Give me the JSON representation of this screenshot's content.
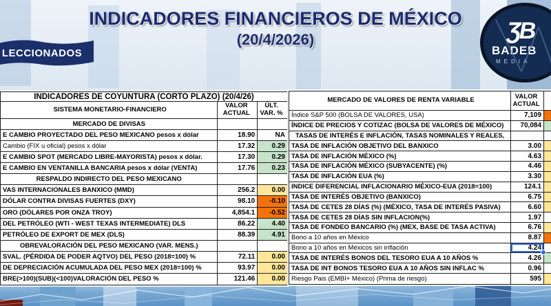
{
  "header": {
    "title": "INDICADORES FINANCIEROS DE MÉXICO",
    "subtitle": "(20/4/2026)",
    "badge": "LECCIONADOS",
    "logo": {
      "monogram": "ƷB",
      "name": "BADEB",
      "sub": "MEDIA"
    }
  },
  "colors": {
    "positive_green": "#c7e3c9",
    "neutral_yellow": "#ffe699",
    "negative_orange": "#f4720b",
    "title_navy": "#1c2b6e"
  },
  "left_table": {
    "title": "INDICADORES DE COYUNTURA (CORTO PLAZO) (20/4/26)",
    "headers": {
      "label": "SISTEMA MONETARIO-FINANCIERO",
      "value": "VALOR\nACTUAL",
      "var": "ÚLT.\nVAR. %"
    },
    "rows": [
      {
        "type": "section",
        "label": "MERCADO DE DIVISAS"
      },
      {
        "type": "data",
        "label": "E CAMBIO PROYECTADO DEL PESO MEXICANO pesos x dólar",
        "value": "18.90",
        "var": "NA",
        "varColor": "none"
      },
      {
        "type": "data",
        "label": "Cambio (FIX u oficial) pesos x dólar",
        "value": "17.32",
        "var": "0.29",
        "varColor": "green",
        "bold": false
      },
      {
        "type": "data",
        "label": "E CAMBIO SPOT (MERCADO LIBRE-MAYORISTA) pesos x dólar.",
        "value": "17.30",
        "var": "0.29",
        "varColor": "green"
      },
      {
        "type": "data",
        "label": "E CAMBIO EN VENTANILLA BANCARIA pesos x dólar (VENTA)",
        "value": "17.76",
        "var": "0.23",
        "varColor": "green"
      },
      {
        "type": "section",
        "label": "RESPALDO INDIRECTO DEL PESO MEXICANO"
      },
      {
        "type": "data",
        "label": "VAS INTERNACIONALES BANXICO (MMD)",
        "value": "256.2",
        "var": "0.00",
        "varColor": "yellow"
      },
      {
        "type": "data",
        "label": "DÓLAR CONTRA DIVISAS FUERTES (DXY)",
        "value": "98.10",
        "var": "-0.10",
        "varColor": "orange"
      },
      {
        "type": "data",
        "label": "ORO (DÓLARES POR ONZA TROY)",
        "value": "4,854.1",
        "var": "-0.52",
        "varColor": "orange"
      },
      {
        "type": "data",
        "label": "DEL PETRÓLEO (WTI - WEST TEXAS INTERMEDIATE) DLS",
        "value": "86.22",
        "var": "4.40",
        "varColor": "green"
      },
      {
        "type": "data",
        "label": "PETRÓLEO DE EXPORT DE MEX (DLS)",
        "value": "88.39",
        "var": "4.91",
        "varColor": "green"
      },
      {
        "type": "section",
        "label": "OBREVALORACIÓN DEL PESO MEXICANO (VAR. MENS.)"
      },
      {
        "type": "data",
        "label": "SVAL. (PÉRDIDA DE PODER AQTVO) DEL PESO (2018=100) %",
        "value": "72.11",
        "var": "0.00",
        "varColor": "yellow"
      },
      {
        "type": "data",
        "label": "DE DEPRECIACIÓN ACUMULADA DEL PESO MEX (2018=100) %",
        "value": "93.97",
        "var": "0.00",
        "varColor": "yellow"
      },
      {
        "type": "data",
        "label": "BRE(>100)(SUB)(<100)VALORACIÓN DEL PESO  %",
        "value": "121.46",
        "var": "0.00",
        "varColor": "yellow"
      }
    ]
  },
  "right_table": {
    "headers": {
      "label": "MERCADO DE VALORES DE RENTA VARIABLE",
      "value": "VALOR\nACTUAL"
    },
    "rows": [
      {
        "type": "data",
        "label": "Índice S&P 500 (BOLSA DE VALORES, USA)",
        "value": "7,109",
        "varColor": "orange",
        "bold": false
      },
      {
        "type": "data",
        "label": "ÍNDICE DE PRECIOS Y COTIZAC (BOLSA DE VALORES DE MÉXICO)",
        "value": "70,084",
        "varColor": "green"
      },
      {
        "type": "section",
        "label": "TASAS DE INTERÉS E INFLACIÓN, TASAS NOMINALES Y REALES,"
      },
      {
        "type": "data",
        "label": "TASA DE INFLACIÓN OBJETIVO DEL BANXICO",
        "value": "3.00",
        "varColor": "yellow"
      },
      {
        "type": "data",
        "label": "TASA DE INFLACIÓN MÉXICO (%)",
        "value": "4.63",
        "varColor": "yellow"
      },
      {
        "type": "data",
        "label": "TASA DE INFLACIÓN MÉXICO (SUBYACENTE) (%)",
        "value": "4.46",
        "varColor": "yellow"
      },
      {
        "type": "data",
        "label": "TASA DE INFLACIÓN EUA (%)",
        "value": "3.30",
        "varColor": "yellow"
      },
      {
        "type": "data",
        "label": "INDICE DIFERENCIAL INFLACIONARIO MÉXICO-EUA (2018=100)",
        "value": "124.1",
        "varColor": "yellow"
      },
      {
        "type": "data",
        "label": "TASA DE INTERÉS OBJETIVO (BANXICO)",
        "value": "6.75",
        "varColor": "yellow"
      },
      {
        "type": "data",
        "label": "TASA DE CETES 28 DÍAS (%) (MÉXICO, TASA DE INTERÉS PASIVA)",
        "value": "6.60",
        "varColor": "yellow"
      },
      {
        "type": "data",
        "label": "TASA DE CETES 28 DÍAS SIN INFLACION(%)",
        "value": "1.97",
        "varColor": "none"
      },
      {
        "type": "data",
        "label": "TASA DE FONDEO BANCARIO (%) (MEX, BASE DE TASA ACTIVA)",
        "value": "6.76",
        "varColor": "yellow"
      },
      {
        "type": "data",
        "label": "Bono a 10 años en México",
        "value": "8.87",
        "varColor": "orange",
        "bold": false
      },
      {
        "type": "data",
        "label": "Bono a 10 años en Méxicos sin inflación",
        "value": "4.24",
        "varColor": "none",
        "bold": false,
        "selected": true
      },
      {
        "type": "data",
        "label": "TASA DE INTERÉS BONOS DEL TESORO EUA A 10 AÑOS %",
        "value": "4.26",
        "varColor": "green"
      },
      {
        "type": "data",
        "label": "TASA DE INT BONOS TESORO EUA A 10 AÑOS SIN INFLAC %",
        "value": "0.96",
        "varColor": "none"
      },
      {
        "type": "data",
        "label": "Riesgo Pais (EMBI+ México) (Prima de riesgo)",
        "value": "595",
        "varColor": "yellow",
        "bold": false
      }
    ]
  }
}
